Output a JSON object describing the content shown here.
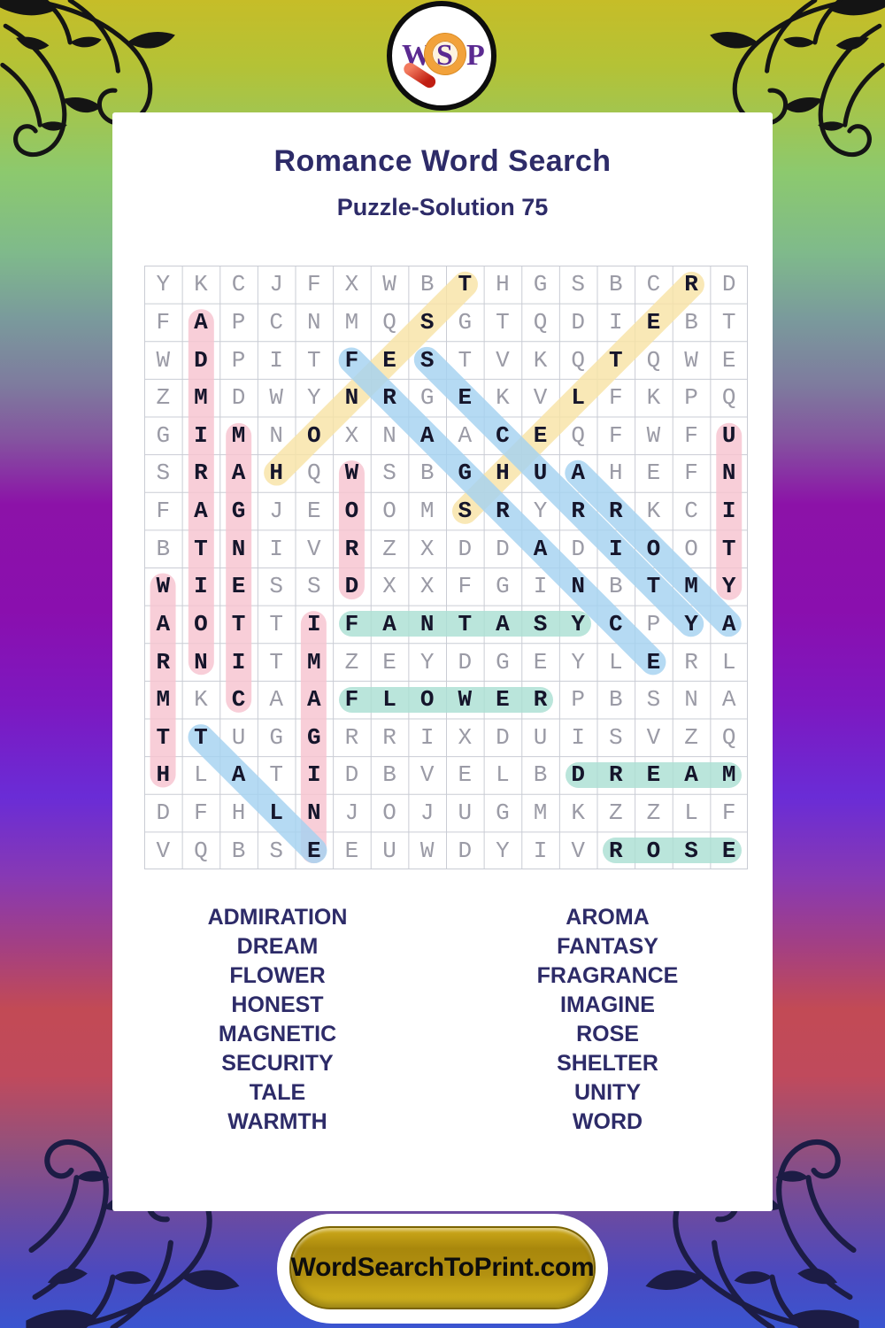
{
  "logo": {
    "letters": [
      "W",
      "S",
      "P"
    ],
    "letter_color": "#5b2a91",
    "ring_color": "#f2a23b",
    "handle_color": "#c01e12"
  },
  "header": {
    "title": "Romance Word Search",
    "subtitle": "Puzzle-Solution 75",
    "text_color": "#2d2b68"
  },
  "puzzle": {
    "grid_size": 16,
    "grid": [
      "YKCJFXWBTHGSBCRD",
      "FAPCNMQSGTQDIEBT",
      "WDPITFESTVKQTQWE",
      "ZMDWYNRGEKVLFKPQ",
      "GIMNOXNAACEQFWFU",
      "SRAHQWSBGHUAHEFN",
      "FAGJEOOMSRYRRKCI",
      "BTNIVRZXDDADIOOT",
      "WIESSDXXFGINBTMY",
      "AOTTIFANTASYCPYA",
      "RNITMZEYDGEYLERL",
      "MKCAAFLOWERPBSNA",
      "TTUGGRRIXDUISVZQ",
      "HLATIDBVELBDREAM",
      "DFHLNJOJUGMKZZLF",
      "VQBSEEUWDYIVROSE"
    ],
    "letter_color_normal": "#9b9ba6",
    "letter_color_solution": "#15152b",
    "highlight_colors": {
      "pink": "#f6c3d0",
      "yellow": "#f8e3a6",
      "blue": "#a5d2f0",
      "teal": "#abdfd3"
    },
    "placements": [
      {
        "word": "ADMIRATION",
        "start": [
          2,
          2
        ],
        "end": [
          11,
          2
        ],
        "color": "pink"
      },
      {
        "word": "MAGNETIC",
        "start": [
          5,
          3
        ],
        "end": [
          12,
          3
        ],
        "color": "pink"
      },
      {
        "word": "WARMTH",
        "start": [
          9,
          1
        ],
        "end": [
          14,
          1
        ],
        "color": "pink"
      },
      {
        "word": "IMAGINE",
        "start": [
          10,
          5
        ],
        "end": [
          16,
          5
        ],
        "color": "pink"
      },
      {
        "word": "WORD",
        "start": [
          6,
          6
        ],
        "end": [
          9,
          6
        ],
        "color": "pink"
      },
      {
        "word": "UNITY",
        "start": [
          5,
          16
        ],
        "end": [
          9,
          16
        ],
        "color": "pink"
      },
      {
        "word": "HONEST",
        "start": [
          6,
          4
        ],
        "end": [
          1,
          9
        ],
        "color": "yellow"
      },
      {
        "word": "SHELTER",
        "start": [
          7,
          9
        ],
        "end": [
          1,
          15
        ],
        "color": "yellow"
      },
      {
        "word": "FRAGRANCE",
        "start": [
          3,
          6
        ],
        "end": [
          11,
          14
        ],
        "color": "blue"
      },
      {
        "word": "SECURITY",
        "start": [
          3,
          8
        ],
        "end": [
          10,
          15
        ],
        "color": "blue"
      },
      {
        "word": "AROMA",
        "start": [
          6,
          12
        ],
        "end": [
          10,
          16
        ],
        "color": "blue"
      },
      {
        "word": "TALE",
        "start": [
          13,
          2
        ],
        "end": [
          16,
          5
        ],
        "color": "blue"
      },
      {
        "word": "FANTASY",
        "start": [
          10,
          6
        ],
        "end": [
          10,
          12
        ],
        "color": "teal"
      },
      {
        "word": "FLOWER",
        "start": [
          12,
          6
        ],
        "end": [
          12,
          11
        ],
        "color": "teal"
      },
      {
        "word": "DREAM",
        "start": [
          14,
          12
        ],
        "end": [
          14,
          16
        ],
        "color": "teal"
      },
      {
        "word": "ROSE",
        "start": [
          16,
          13
        ],
        "end": [
          16,
          16
        ],
        "color": "teal"
      }
    ]
  },
  "word_list": {
    "left": [
      "ADMIRATION",
      "DREAM",
      "FLOWER",
      "HONEST",
      "MAGNETIC",
      "SECURITY",
      "TALE",
      "WARMTH"
    ],
    "right": [
      "AROMA",
      "FANTASY",
      "FRAGRANCE",
      "IMAGINE",
      "ROSE",
      "SHELTER",
      "UNITY",
      "WORD"
    ]
  },
  "footer": {
    "button_label": "WordSearchToPrint.com",
    "button_color": "#b39110"
  },
  "theme": {
    "background_top": "#c6bd28",
    "background_middle": "#8a0fae",
    "background_bottom": "#3a55d0",
    "card_color": "#ffffff",
    "flourish_top_color": "#141414",
    "flourish_bottom_color": "#1c1c45"
  }
}
